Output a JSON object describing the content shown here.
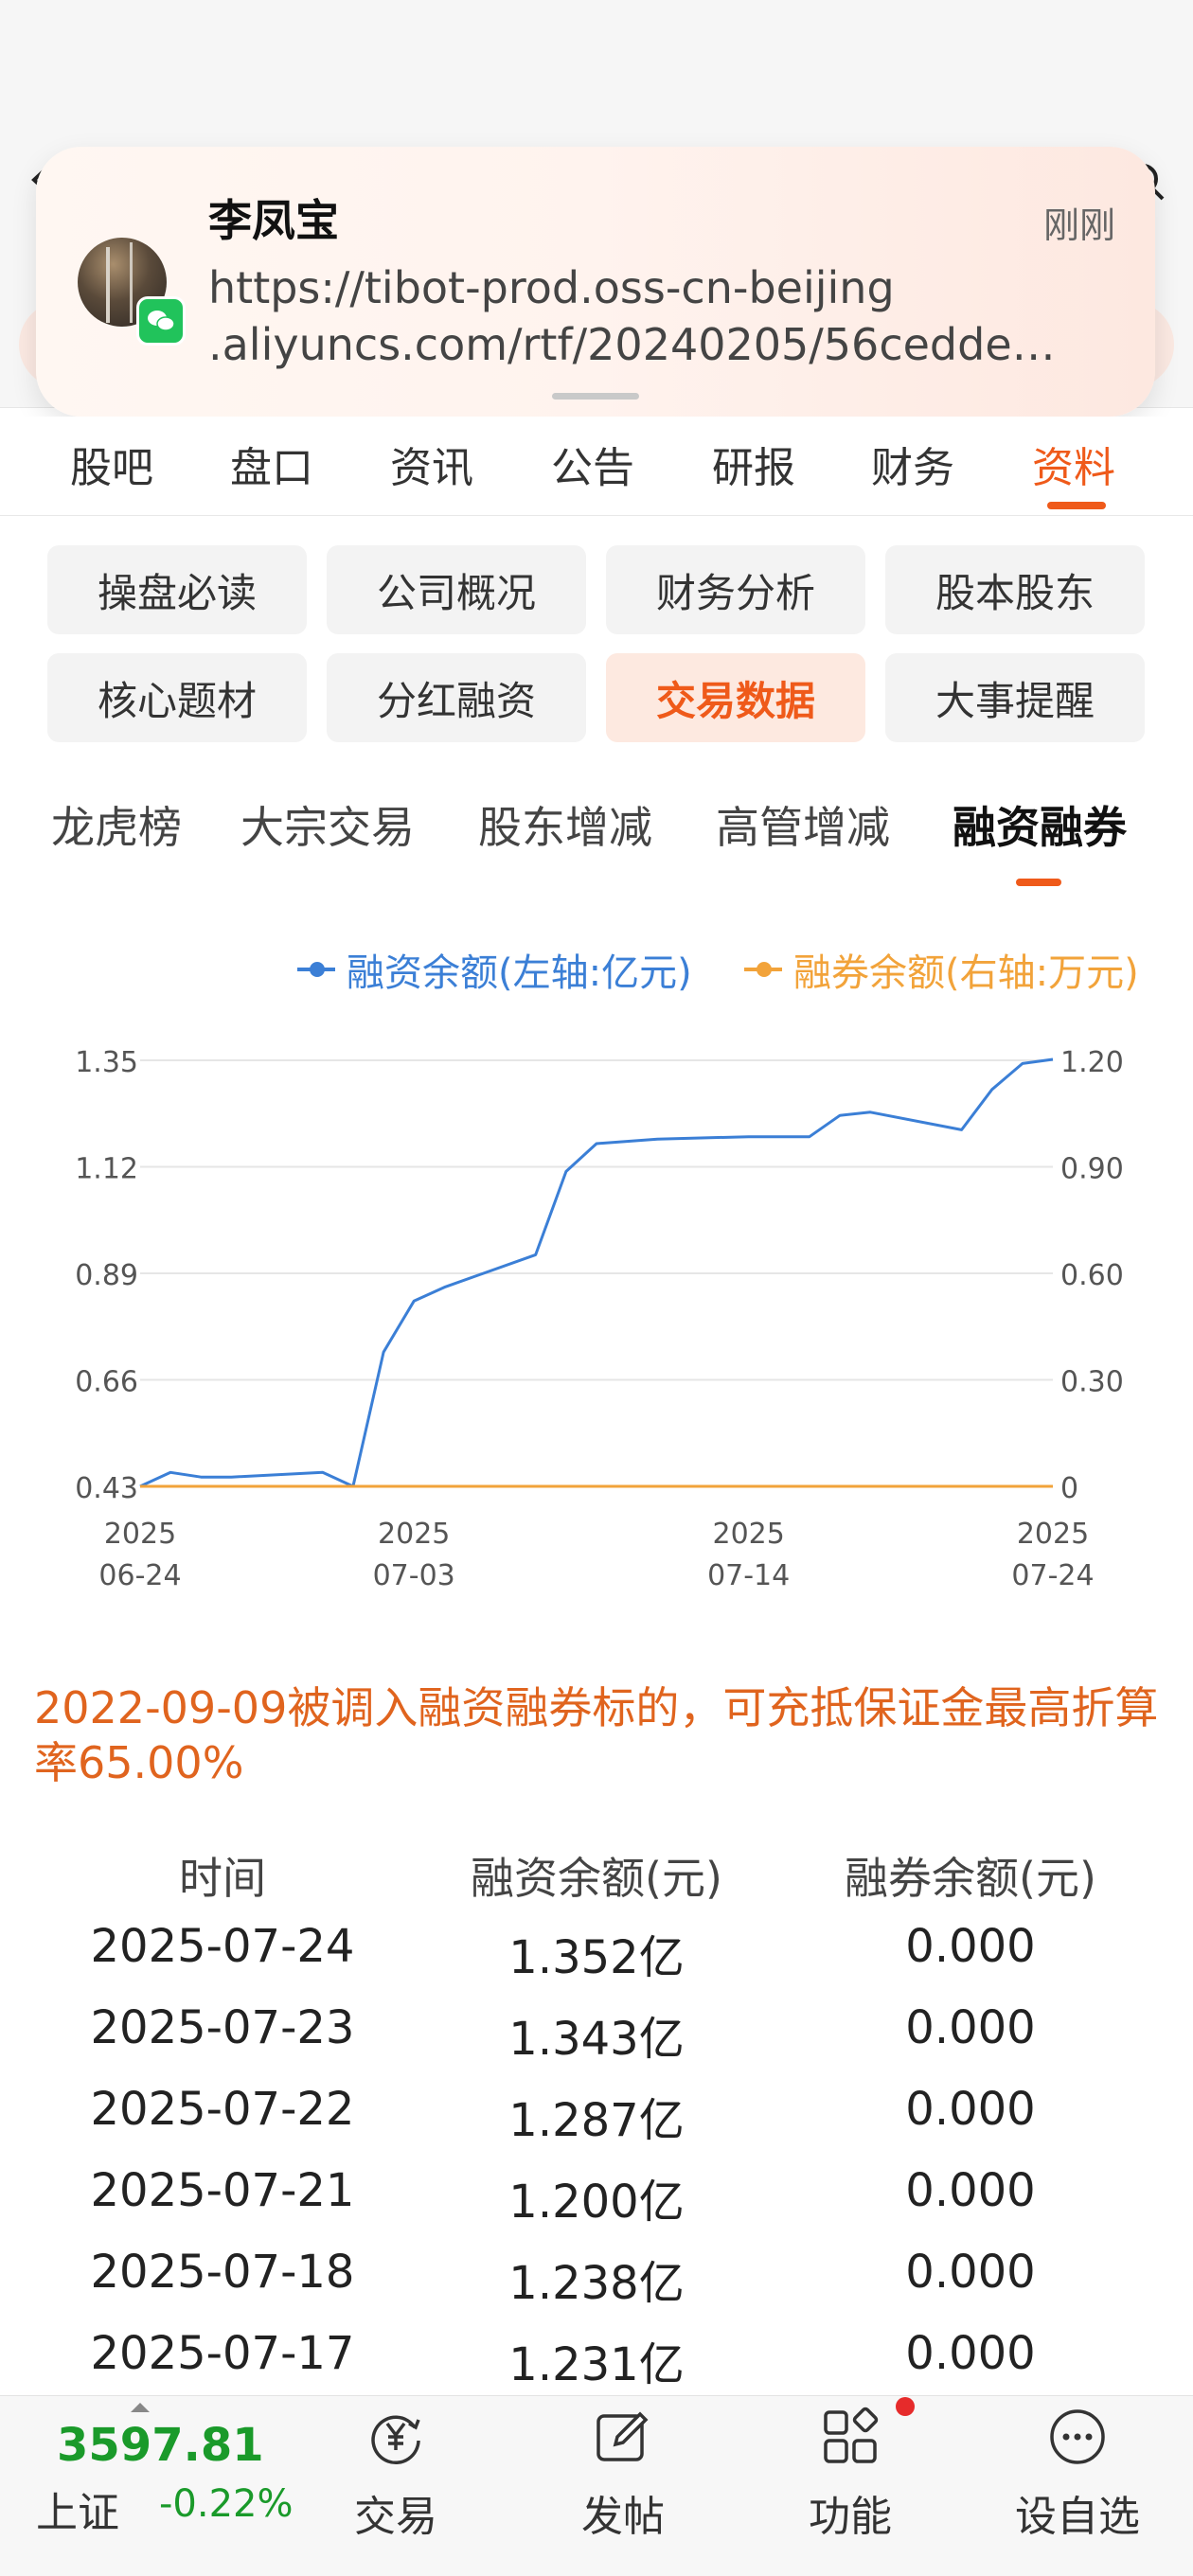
{
  "notification": {
    "sender": "李凤宝",
    "time": "刚刚",
    "line1": "https://tibot-prod.oss-cn-beijing",
    "line2": ".aliyuncs.com/rtf/20240205/56cedde…"
  },
  "main_tabs": [
    "股吧",
    "盘口",
    "资讯",
    "公告",
    "研报",
    "财务",
    "资料"
  ],
  "main_tab_active": "资料",
  "grid_buttons": [
    "操盘必读",
    "公司概况",
    "财务分析",
    "股本股东",
    "核心题材",
    "分红融资",
    "交易数据",
    "大事提醒"
  ],
  "grid_active": "交易数据",
  "sub_tabs": [
    "龙虎榜",
    "大宗交易",
    "股东增减",
    "高管增减",
    "融资融券"
  ],
  "sub_tab_active": "融资融券",
  "legend": {
    "financing": "融资余额(左轴:亿元)",
    "lending": "融券余额(右轴:万元)",
    "financing_color": "#3b7fd6",
    "lending_color": "#f2a33a"
  },
  "chart_data": {
    "type": "line",
    "x_ticks": [
      {
        "year": "2025",
        "date": "06-24"
      },
      {
        "year": "2025",
        "date": "07-03"
      },
      {
        "year": "2025",
        "date": "07-14"
      },
      {
        "year": "2025",
        "date": "07-24"
      }
    ],
    "y_left_ticks": [
      "1.35",
      "1.12",
      "0.89",
      "0.66",
      "0.43"
    ],
    "y_right_ticks": [
      "1.20",
      "0.90",
      "0.60",
      "0.30",
      "0"
    ],
    "ylim_left": [
      0.43,
      1.35
    ],
    "ylim_right": [
      0,
      1.2
    ],
    "grid": true,
    "series": [
      {
        "name": "融资余额(左轴:亿元)",
        "axis": "left",
        "color": "#3b7fd6",
        "x": [
          "2025-06-24",
          "2025-06-25",
          "2025-06-26",
          "2025-06-27",
          "2025-06-30",
          "2025-07-01",
          "2025-07-02",
          "2025-07-03",
          "2025-07-04",
          "2025-07-07",
          "2025-07-08",
          "2025-07-09",
          "2025-07-10",
          "2025-07-11",
          "2025-07-14",
          "2025-07-15",
          "2025-07-16",
          "2025-07-17",
          "2025-07-18",
          "2025-07-21",
          "2025-07-22",
          "2025-07-23",
          "2025-07-24"
        ],
        "values": [
          0.43,
          0.46,
          0.45,
          0.45,
          0.46,
          0.43,
          0.72,
          0.83,
          0.86,
          0.93,
          1.11,
          1.17,
          1.175,
          1.18,
          1.185,
          1.185,
          1.185,
          1.231,
          1.238,
          1.2,
          1.287,
          1.343,
          1.352
        ]
      },
      {
        "name": "融券余额(右轴:万元)",
        "axis": "right",
        "color": "#f2a33a",
        "x": [
          "2025-06-24",
          "2025-07-24"
        ],
        "values": [
          0,
          0
        ]
      }
    ]
  },
  "note": "2022-09-09被调入融资融券标的，可充抵保证金最高折算率65.00%",
  "table": {
    "headers": [
      "时间",
      "融资余额(元)",
      "融券余额(元)"
    ],
    "rows": [
      [
        "2025-07-24",
        "1.352亿",
        "0.000"
      ],
      [
        "2025-07-23",
        "1.343亿",
        "0.000"
      ],
      [
        "2025-07-22",
        "1.287亿",
        "0.000"
      ],
      [
        "2025-07-21",
        "1.200亿",
        "0.000"
      ],
      [
        "2025-07-18",
        "1.238亿",
        "0.000"
      ],
      [
        "2025-07-17",
        "1.231亿",
        "0.000"
      ]
    ]
  },
  "bottom_bar": {
    "index_value": "3597.81",
    "index_name": "上证",
    "index_change": "-0.22%",
    "nav": [
      "交易",
      "发帖",
      "功能",
      "设自选"
    ]
  }
}
